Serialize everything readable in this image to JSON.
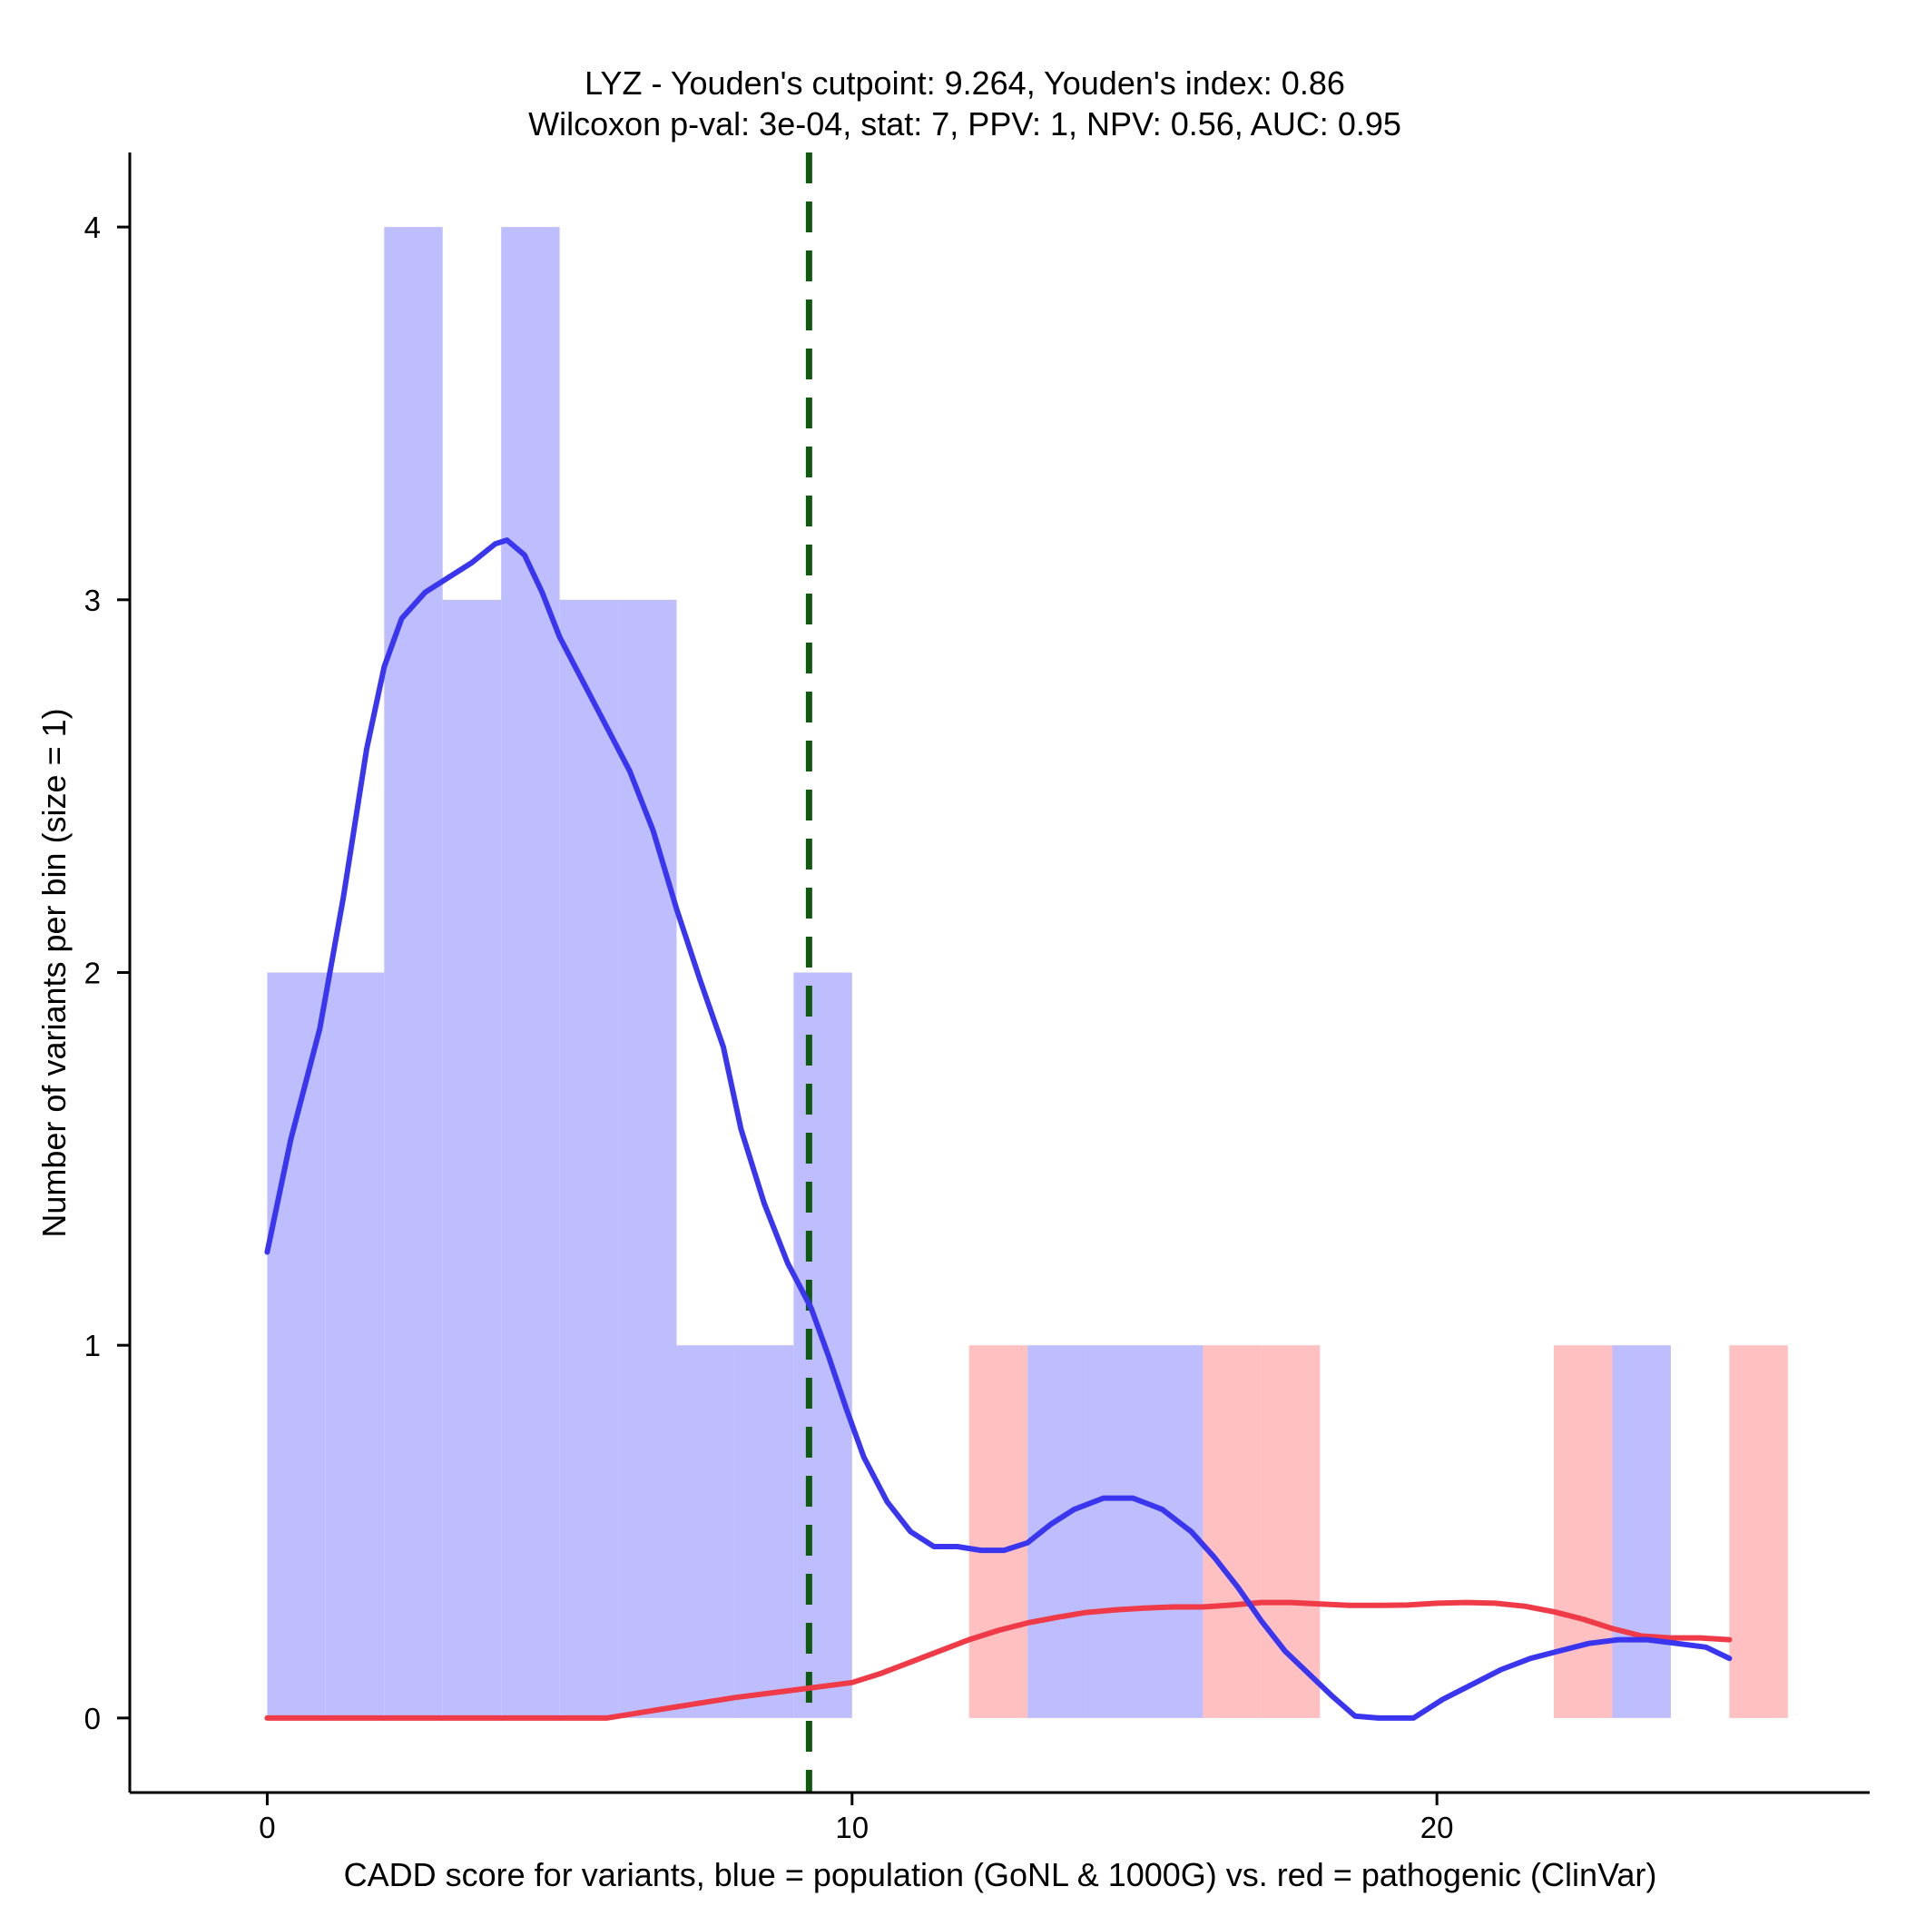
{
  "chart_data": {
    "type": "histogram-density",
    "title": "LYZ - Youden's cutpoint: 9.264, Youden's index: 0.86",
    "subtitle": "Wilcoxon p-val: 3e-04, stat: 7, PPV: 1, NPV: 0.56, AUC: 0.95",
    "xlabel": "CADD score for variants, blue = population (GoNL & 1000G) vs. red = pathogenic (ClinVar)",
    "ylabel": "Number of variants per bin (size = 1)",
    "xlim": [
      -2.35,
      27.4
    ],
    "ylim": [
      -0.2,
      4.2
    ],
    "x_ticks": [
      0,
      10,
      20
    ],
    "x_tick_labels": [
      "0",
      "10",
      "20"
    ],
    "y_ticks": [
      0,
      1,
      2,
      3,
      4
    ],
    "y_tick_labels": [
      "0",
      "1",
      "2",
      "3",
      "4"
    ],
    "bin_width": 1,
    "cutpoint": 9.264,
    "colors": {
      "population_fill": "#bebefe",
      "pathogenic_fill": "#fec0c0",
      "population_line": "#3a35ef",
      "pathogenic_line": "#ef3a48",
      "cutpoint_line": "#0f5a10"
    },
    "series": [
      {
        "name": "population (GoNL & 1000G)",
        "bins": [
          {
            "start": 0,
            "count": 2
          },
          {
            "start": 1,
            "count": 2
          },
          {
            "start": 2,
            "count": 4
          },
          {
            "start": 3,
            "count": 3
          },
          {
            "start": 4,
            "count": 4
          },
          {
            "start": 5,
            "count": 3
          },
          {
            "start": 6,
            "count": 3
          },
          {
            "start": 7,
            "count": 1
          },
          {
            "start": 8,
            "count": 1
          },
          {
            "start": 9,
            "count": 2
          },
          {
            "start": 13,
            "count": 1
          },
          {
            "start": 14,
            "count": 1
          },
          {
            "start": 15,
            "count": 1
          },
          {
            "start": 23,
            "count": 1
          }
        ],
        "density": [
          [
            0,
            1.25
          ],
          [
            0.4,
            1.55
          ],
          [
            0.9,
            1.85
          ],
          [
            1.3,
            2.2
          ],
          [
            1.7,
            2.6
          ],
          [
            2.0,
            2.82
          ],
          [
            2.3,
            2.95
          ],
          [
            2.7,
            3.02
          ],
          [
            3.1,
            3.06
          ],
          [
            3.5,
            3.1
          ],
          [
            3.9,
            3.15
          ],
          [
            4.1,
            3.16
          ],
          [
            4.4,
            3.12
          ],
          [
            4.7,
            3.02
          ],
          [
            5.0,
            2.9
          ],
          [
            5.4,
            2.78
          ],
          [
            5.8,
            2.66
          ],
          [
            6.2,
            2.54
          ],
          [
            6.6,
            2.38
          ],
          [
            7.0,
            2.17
          ],
          [
            7.4,
            1.98
          ],
          [
            7.8,
            1.8
          ],
          [
            8.1,
            1.58
          ],
          [
            8.5,
            1.38
          ],
          [
            8.9,
            1.22
          ],
          [
            9.3,
            1.1
          ],
          [
            9.6,
            0.97
          ],
          [
            9.9,
            0.83
          ],
          [
            10.2,
            0.7
          ],
          [
            10.6,
            0.58
          ],
          [
            11.0,
            0.5
          ],
          [
            11.4,
            0.46
          ],
          [
            11.8,
            0.46
          ],
          [
            12.2,
            0.45
          ],
          [
            12.6,
            0.45
          ],
          [
            13.0,
            0.47
          ],
          [
            13.4,
            0.52
          ],
          [
            13.8,
            0.56
          ],
          [
            14.3,
            0.59
          ],
          [
            14.8,
            0.59
          ],
          [
            15.3,
            0.56
          ],
          [
            15.8,
            0.5
          ],
          [
            16.2,
            0.43
          ],
          [
            16.6,
            0.35
          ],
          [
            17.0,
            0.26
          ],
          [
            17.4,
            0.18
          ],
          [
            17.8,
            0.12
          ],
          [
            18.2,
            0.06
          ],
          [
            18.6,
            0.005
          ],
          [
            19.0,
            0.0
          ],
          [
            19.6,
            0.0
          ],
          [
            20.1,
            0.05
          ],
          [
            20.6,
            0.09
          ],
          [
            21.1,
            0.13
          ],
          [
            21.6,
            0.16
          ],
          [
            22.1,
            0.18
          ],
          [
            22.6,
            0.2
          ],
          [
            23.1,
            0.21
          ],
          [
            23.6,
            0.21
          ],
          [
            24.1,
            0.2
          ],
          [
            24.6,
            0.19
          ],
          [
            25.0,
            0.16
          ]
        ]
      },
      {
        "name": "pathogenic (ClinVar)",
        "bins": [
          {
            "start": 12,
            "count": 1
          },
          {
            "start": 16,
            "count": 1
          },
          {
            "start": 17,
            "count": 1
          },
          {
            "start": 22,
            "count": 1
          },
          {
            "start": 25,
            "count": 1
          }
        ],
        "density": [
          [
            0,
            0.0
          ],
          [
            2,
            0.0
          ],
          [
            4,
            0.0
          ],
          [
            5.8,
            0.0
          ],
          [
            6.2,
            0.01
          ],
          [
            7.0,
            0.03
          ],
          [
            8.0,
            0.055
          ],
          [
            9.0,
            0.075
          ],
          [
            10.0,
            0.095
          ],
          [
            10.5,
            0.12
          ],
          [
            11.0,
            0.15
          ],
          [
            11.5,
            0.18
          ],
          [
            12.0,
            0.21
          ],
          [
            12.5,
            0.235
          ],
          [
            13.0,
            0.255
          ],
          [
            13.5,
            0.27
          ],
          [
            14.0,
            0.283
          ],
          [
            14.5,
            0.29
          ],
          [
            15.0,
            0.295
          ],
          [
            15.5,
            0.298
          ],
          [
            16.0,
            0.298
          ],
          [
            16.5,
            0.303
          ],
          [
            17.0,
            0.31
          ],
          [
            17.5,
            0.31
          ],
          [
            18.0,
            0.306
          ],
          [
            18.5,
            0.302
          ],
          [
            19.0,
            0.302
          ],
          [
            19.5,
            0.303
          ],
          [
            20.0,
            0.308
          ],
          [
            20.5,
            0.31
          ],
          [
            21.0,
            0.308
          ],
          [
            21.5,
            0.3
          ],
          [
            22.0,
            0.285
          ],
          [
            22.5,
            0.265
          ],
          [
            23.0,
            0.24
          ],
          [
            23.5,
            0.22
          ],
          [
            24.0,
            0.215
          ],
          [
            24.5,
            0.215
          ],
          [
            25.0,
            0.21
          ]
        ]
      }
    ]
  }
}
